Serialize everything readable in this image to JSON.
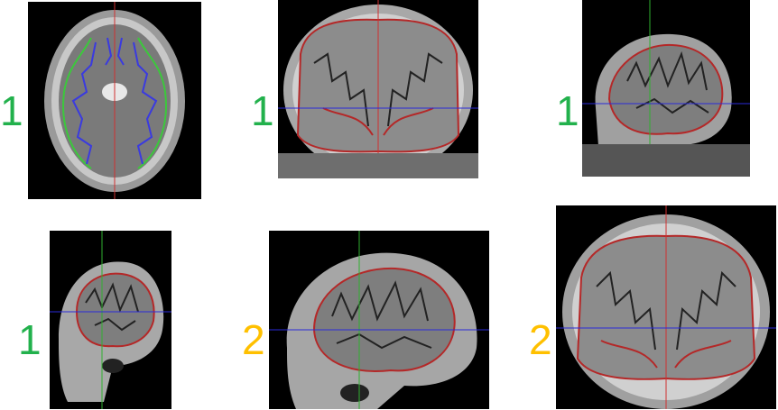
{
  "colors": {
    "pial_contour": "#b42828",
    "white_contour_axial": "#3a3ae0",
    "pial_contour_axial": "#3cc83c",
    "crosshair_vertical_red": "#d03030",
    "crosshair_vertical_green": "#30b030",
    "crosshair_horizontal": "#2a2ad8",
    "score_1": "#22b14c",
    "score_2": "#ffc000"
  },
  "panels": [
    {
      "view": "axial",
      "score": "1"
    },
    {
      "view": "coronal",
      "score": "1"
    },
    {
      "view": "sagittal",
      "score": "1"
    },
    {
      "view": "sagittal",
      "score": "1"
    },
    {
      "view": "sagittal",
      "score": "2"
    },
    {
      "view": "coronal",
      "score": "2"
    }
  ]
}
